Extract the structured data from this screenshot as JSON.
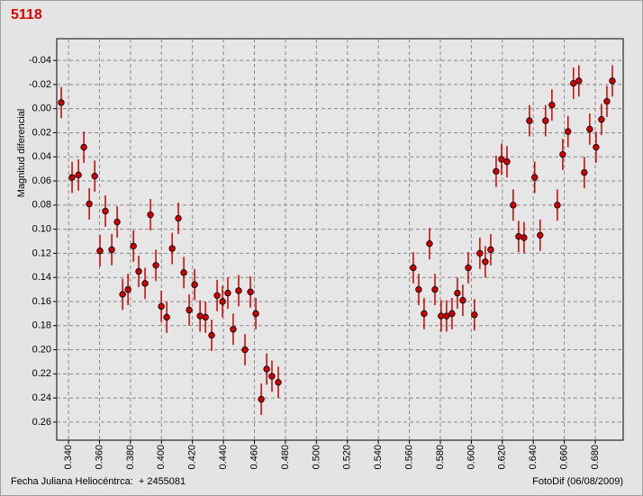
{
  "chart_data": {
    "type": "scatter",
    "title": "5118",
    "ylabel": "Magnitud diferencial",
    "xlabel": "Fecha Juliana Heliocéntrca:  + 2455081",
    "credit": "FotoDif (06/08/2009)",
    "x": [
      0.3353,
      0.3423,
      0.3464,
      0.3499,
      0.3534,
      0.3569,
      0.3603,
      0.3638,
      0.3679,
      0.3714,
      0.3749,
      0.3784,
      0.3819,
      0.3853,
      0.3894,
      0.3929,
      0.3964,
      0.3999,
      0.4034,
      0.4069,
      0.4109,
      0.4144,
      0.4179,
      0.4214,
      0.4249,
      0.4284,
      0.4324,
      0.4359,
      0.4394,
      0.4428,
      0.4463,
      0.4498,
      0.4539,
      0.4574,
      0.4609,
      0.4644,
      0.4679,
      0.4713,
      0.4754,
      0.5625,
      0.566,
      0.5695,
      0.573,
      0.5765,
      0.5805,
      0.584,
      0.5875,
      0.591,
      0.5945,
      0.598,
      0.602,
      0.6055,
      0.609,
      0.6125,
      0.616,
      0.6195,
      0.623,
      0.627,
      0.6305,
      0.634,
      0.6375,
      0.6409,
      0.6444,
      0.6479,
      0.652,
      0.6555,
      0.659,
      0.6624,
      0.6659,
      0.6694,
      0.6729,
      0.6764,
      0.6805,
      0.684,
      0.6875,
      0.691
    ],
    "series": [
      {
        "color": "#cc0000",
        "values": [
          -0.005,
          0.057,
          0.055,
          0.032,
          0.079,
          0.056,
          0.118,
          0.085,
          0.117,
          0.094,
          0.154,
          0.15,
          0.114,
          0.135,
          0.145,
          0.088,
          0.13,
          0.164,
          0.173,
          0.116,
          0.091,
          0.136,
          0.167,
          0.146,
          0.172,
          0.173,
          0.188,
          0.155,
          0.16,
          0.153,
          0.183,
          0.151,
          0.2,
          0.152,
          0.17,
          0.241,
          0.216,
          0.222,
          0.227,
          0.132,
          0.15,
          0.17,
          0.112,
          0.15,
          0.172,
          0.172,
          0.17,
          0.153,
          0.159,
          0.132,
          0.171,
          0.12,
          0.127,
          0.117,
          0.052,
          0.042,
          0.044,
          0.08,
          0.106,
          0.107,
          0.01,
          0.057,
          0.105,
          0.01,
          -0.003,
          0.08,
          0.038,
          0.019,
          -0.021,
          -0.023,
          0.053,
          0.017,
          0.032,
          0.009,
          -0.006,
          -0.023
        ]
      }
    ],
    "yerr": 0.013,
    "xlim": [
      0.3324,
      0.698
    ],
    "ylim": [
      0.275,
      -0.058
    ],
    "xticks": [
      {
        "value": 0.34,
        "label": "0.340"
      },
      {
        "value": 0.36,
        "label": "0.360"
      },
      {
        "value": 0.38,
        "label": "0.380"
      },
      {
        "value": 0.4,
        "label": "0.400"
      },
      {
        "value": 0.42,
        "label": "0.420"
      },
      {
        "value": 0.44,
        "label": "0.440"
      },
      {
        "value": 0.46,
        "label": "0.460"
      },
      {
        "value": 0.48,
        "label": "0.480"
      },
      {
        "value": 0.5,
        "label": "0.500"
      },
      {
        "value": 0.52,
        "label": "0.520"
      },
      {
        "value": 0.54,
        "label": "0.540"
      },
      {
        "value": 0.56,
        "label": "0.560"
      },
      {
        "value": 0.58,
        "label": "0.580"
      },
      {
        "value": 0.6,
        "label": "0.600"
      },
      {
        "value": 0.62,
        "label": "0.620"
      },
      {
        "value": 0.64,
        "label": "0.640"
      },
      {
        "value": 0.66,
        "label": "0.660"
      },
      {
        "value": 0.68,
        "label": "0.680"
      }
    ],
    "yticks": [
      -0.04,
      -0.02,
      {
        "value": 0,
        "label": "0.00"
      },
      0.02,
      0.04,
      0.06,
      0.08,
      {
        "value": 0.1,
        "label": "0.10"
      },
      0.12,
      0.14,
      0.16,
      0.18,
      {
        "value": 0.2,
        "label": "0.20"
      },
      0.22,
      0.24,
      0.26
    ],
    "grid": true
  }
}
